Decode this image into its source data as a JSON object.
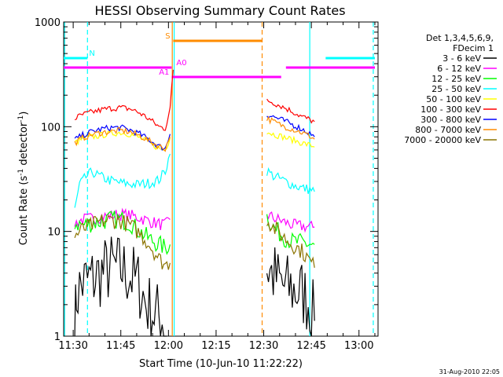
{
  "chart_data": {
    "type": "line",
    "title": "HESSI Observing Summary Count Rates",
    "xlabel": "Start Time (10-Jun-10 11:22:22)",
    "ylabel_main": "Count Rate (s",
    "ylabel_sup1": "-1",
    "ylabel_mid": " detector",
    "ylabel_sup2": "-1",
    "ylabel_end": ")",
    "ylog": true,
    "ylim": [
      1,
      1000
    ],
    "xlim_min": [
      687,
      786
    ],
    "x_ticks": [
      {
        "v": 690,
        "label": "11:30"
      },
      {
        "v": 705,
        "label": "11:45"
      },
      {
        "v": 720,
        "label": "12:00"
      },
      {
        "v": 735,
        "label": "12:15"
      },
      {
        "v": 750,
        "label": "12:30"
      },
      {
        "v": 765,
        "label": "12:45"
      },
      {
        "v": 780,
        "label": "13:00"
      }
    ],
    "y_ticks": [
      {
        "v": 1,
        "label": "1"
      },
      {
        "v": 10,
        "label": "10"
      },
      {
        "v": 100,
        "label": "100"
      },
      {
        "v": 1000,
        "label": "1000"
      }
    ],
    "legend_header": [
      "Det 1,3,4,5,6,9,",
      "FDecim 1"
    ],
    "series": [
      {
        "name": "3 - 6 keV",
        "color": "#000000",
        "pts": [
          [
            690.5,
            1
          ],
          [
            691,
            2.5
          ],
          [
            693,
            3.2
          ],
          [
            696,
            3.5
          ],
          [
            699,
            4
          ],
          [
            702,
            4.5
          ],
          [
            705,
            4.4
          ],
          [
            708,
            3.8
          ],
          [
            711,
            3
          ],
          [
            713,
            2
          ],
          [
            716,
            1.6
          ],
          [
            718,
            1.5
          ],
          [
            719.5,
            1
          ],
          [
            751,
            4.5
          ],
          [
            753,
            3.8
          ],
          [
            756,
            3
          ],
          [
            759,
            2.8
          ],
          [
            762,
            2.6
          ],
          [
            764,
            2.2
          ],
          [
            766,
            1.4
          ]
        ],
        "seg": [
          [
            0,
            12
          ],
          [
            13,
            20
          ]
        ],
        "noise": 0.35
      },
      {
        "name": "6 - 12 keV",
        "color": "#ff00ff",
        "pts": [
          [
            690.5,
            12
          ],
          [
            693,
            13
          ],
          [
            696,
            13.3
          ],
          [
            699,
            13.8
          ],
          [
            702,
            14.2
          ],
          [
            705,
            14.5
          ],
          [
            708,
            14.2
          ],
          [
            711,
            13.5
          ],
          [
            714,
            12.5
          ],
          [
            717,
            11.8
          ],
          [
            719,
            11.5
          ],
          [
            720.5,
            13
          ],
          [
            751,
            14.5
          ],
          [
            753,
            13.5
          ],
          [
            756,
            12.5
          ],
          [
            759,
            11.5
          ],
          [
            762,
            11.2
          ],
          [
            765,
            11
          ],
          [
            766,
            11
          ]
        ],
        "seg": [
          [
            0,
            11
          ],
          [
            12,
            18
          ]
        ],
        "noise": 0.06
      },
      {
        "name": "12 - 25 keV",
        "color": "#00ff00",
        "pts": [
          [
            690.5,
            12
          ],
          [
            693,
            11.5
          ],
          [
            696,
            12
          ],
          [
            699,
            12.5
          ],
          [
            702,
            13
          ],
          [
            705,
            13
          ],
          [
            708,
            12
          ],
          [
            711,
            10
          ],
          [
            714,
            8.5
          ],
          [
            717,
            7.5
          ],
          [
            719,
            7
          ],
          [
            720.5,
            7.5
          ],
          [
            751,
            14
          ],
          [
            753,
            11
          ],
          [
            756,
            9
          ],
          [
            759,
            8
          ],
          [
            762,
            7.8
          ],
          [
            765,
            7.5
          ],
          [
            766,
            7.5
          ]
        ],
        "seg": [
          [
            0,
            11
          ],
          [
            12,
            18
          ]
        ],
        "noise": 0.09
      },
      {
        "name": "25 - 50 keV",
        "color": "#00ffff",
        "pts": [
          [
            690.5,
            16
          ],
          [
            692,
            28
          ],
          [
            694,
            33
          ],
          [
            696,
            37
          ],
          [
            698,
            34
          ],
          [
            701,
            31
          ],
          [
            705,
            29
          ],
          [
            710,
            28
          ],
          [
            714,
            29
          ],
          [
            717,
            31
          ],
          [
            719,
            38
          ],
          [
            720.5,
            55
          ],
          [
            751,
            38
          ],
          [
            753,
            34
          ],
          [
            756,
            31
          ],
          [
            759,
            28
          ],
          [
            762,
            26
          ],
          [
            765,
            25
          ],
          [
            766,
            24
          ]
        ],
        "seg": [
          [
            0,
            11
          ],
          [
            12,
            18
          ]
        ],
        "noise": 0.05
      },
      {
        "name": "50 - 100 keV",
        "color": "#ffff00",
        "pts": [
          [
            690.5,
            70
          ],
          [
            693,
            76
          ],
          [
            696,
            80
          ],
          [
            699,
            83
          ],
          [
            702,
            86
          ],
          [
            705,
            88
          ],
          [
            708,
            85
          ],
          [
            711,
            78
          ],
          [
            714,
            70
          ],
          [
            717,
            62
          ],
          [
            719,
            60
          ],
          [
            720.5,
            78
          ],
          [
            751,
            90
          ],
          [
            753,
            85
          ],
          [
            756,
            80
          ],
          [
            759,
            75
          ],
          [
            762,
            70
          ],
          [
            765,
            66
          ],
          [
            766,
            64
          ]
        ],
        "seg": [
          [
            0,
            11
          ],
          [
            12,
            18
          ]
        ],
        "noise": 0.03
      },
      {
        "name": "100 - 300 keV",
        "color": "#ff0000",
        "pts": [
          [
            690.5,
            120
          ],
          [
            693,
            130
          ],
          [
            696,
            138
          ],
          [
            699,
            145
          ],
          [
            702,
            150
          ],
          [
            705,
            152
          ],
          [
            708,
            148
          ],
          [
            711,
            135
          ],
          [
            714,
            118
          ],
          [
            717,
            100
          ],
          [
            719,
            96
          ],
          [
            720.5,
            150
          ],
          [
            721.5,
            350
          ],
          [
            751,
            180
          ],
          [
            753,
            170
          ],
          [
            756,
            155
          ],
          [
            759,
            140
          ],
          [
            762,
            125
          ],
          [
            765,
            115
          ],
          [
            766,
            112
          ]
        ],
        "seg": [
          [
            0,
            12
          ],
          [
            13,
            19
          ]
        ],
        "noise": 0.03
      },
      {
        "name": "300 - 800 keV",
        "color": "#0000ff",
        "pts": [
          [
            690.5,
            75
          ],
          [
            693,
            83
          ],
          [
            696,
            90
          ],
          [
            699,
            95
          ],
          [
            702,
            98
          ],
          [
            705,
            98
          ],
          [
            708,
            93
          ],
          [
            711,
            85
          ],
          [
            714,
            75
          ],
          [
            717,
            65
          ],
          [
            719,
            62
          ],
          [
            720.5,
            85
          ],
          [
            751,
            130
          ],
          [
            753,
            125
          ],
          [
            756,
            115
          ],
          [
            759,
            105
          ],
          [
            762,
            95
          ],
          [
            765,
            85
          ],
          [
            766,
            80
          ]
        ],
        "seg": [
          [
            0,
            11
          ],
          [
            12,
            18
          ]
        ],
        "noise": 0.03
      },
      {
        "name": "800 - 7000 keV",
        "color": "#ff8c00",
        "pts": [
          [
            690.5,
            70
          ],
          [
            693,
            78
          ],
          [
            696,
            84
          ],
          [
            699,
            88
          ],
          [
            702,
            90
          ],
          [
            705,
            92
          ],
          [
            708,
            89
          ],
          [
            711,
            82
          ],
          [
            714,
            73
          ],
          [
            717,
            65
          ],
          [
            719,
            62
          ],
          [
            720.5,
            80
          ],
          [
            751,
            120
          ],
          [
            753,
            112
          ],
          [
            756,
            102
          ],
          [
            759,
            95
          ],
          [
            762,
            88
          ],
          [
            765,
            80
          ],
          [
            766,
            76
          ]
        ],
        "seg": [
          [
            0,
            11
          ],
          [
            12,
            18
          ]
        ],
        "noise": 0.03
      },
      {
        "name": "7000 - 20000 keV",
        "color": "#8b7300",
        "pts": [
          [
            690.5,
            9
          ],
          [
            693,
            10.5
          ],
          [
            696,
            11.5
          ],
          [
            699,
            12.5
          ],
          [
            702,
            12.8
          ],
          [
            705,
            12.5
          ],
          [
            708,
            11.5
          ],
          [
            711,
            9.5
          ],
          [
            714,
            7.5
          ],
          [
            717,
            5.5
          ],
          [
            719,
            4.8
          ],
          [
            720.5,
            5
          ],
          [
            751,
            13
          ],
          [
            753,
            11
          ],
          [
            756,
            9
          ],
          [
            759,
            7.5
          ],
          [
            762,
            6.5
          ],
          [
            765,
            5
          ],
          [
            766,
            4.5
          ]
        ],
        "seg": [
          [
            0,
            11
          ],
          [
            12,
            18
          ]
        ],
        "noise": 0.08
      }
    ],
    "flags": [
      {
        "label": "N",
        "color": "#00ffff",
        "y": 0.885,
        "segs": [
          [
            687,
            694.5
          ],
          [
            769.5,
            785
          ]
        ],
        "label_x": 695
      },
      {
        "label": "S",
        "color": "#ff8c00",
        "y": 0.94,
        "segs": [
          [
            721.5,
            749.5
          ]
        ],
        "label_x": 719
      },
      {
        "label": "A0",
        "color": "#ff00ff",
        "y": 0.855,
        "segs": [
          [
            687,
            721
          ],
          [
            757,
            785
          ]
        ],
        "label_x": 722.5
      },
      {
        "label": "A1",
        "color": "#ff00ff",
        "y": 0.825,
        "segs": [
          [
            721,
            755.5
          ]
        ],
        "label_x": 717
      }
    ],
    "vlines": [
      {
        "x": 694.5,
        "color": "#00ffff",
        "dash": true
      },
      {
        "x": 721.2,
        "color": "#ff8c00",
        "dash": false
      },
      {
        "x": 721.8,
        "color": "#00ffff",
        "dash": false
      },
      {
        "x": 749.5,
        "color": "#ff8c00",
        "dash": true
      },
      {
        "x": 764.5,
        "color": "#00ffff",
        "dash": false
      },
      {
        "x": 784.5,
        "color": "#00ffff",
        "dash": true
      },
      {
        "x": 687.3,
        "color": "#00ffff",
        "dash": false
      }
    ],
    "footer": "31-Aug-2010 22:05"
  }
}
